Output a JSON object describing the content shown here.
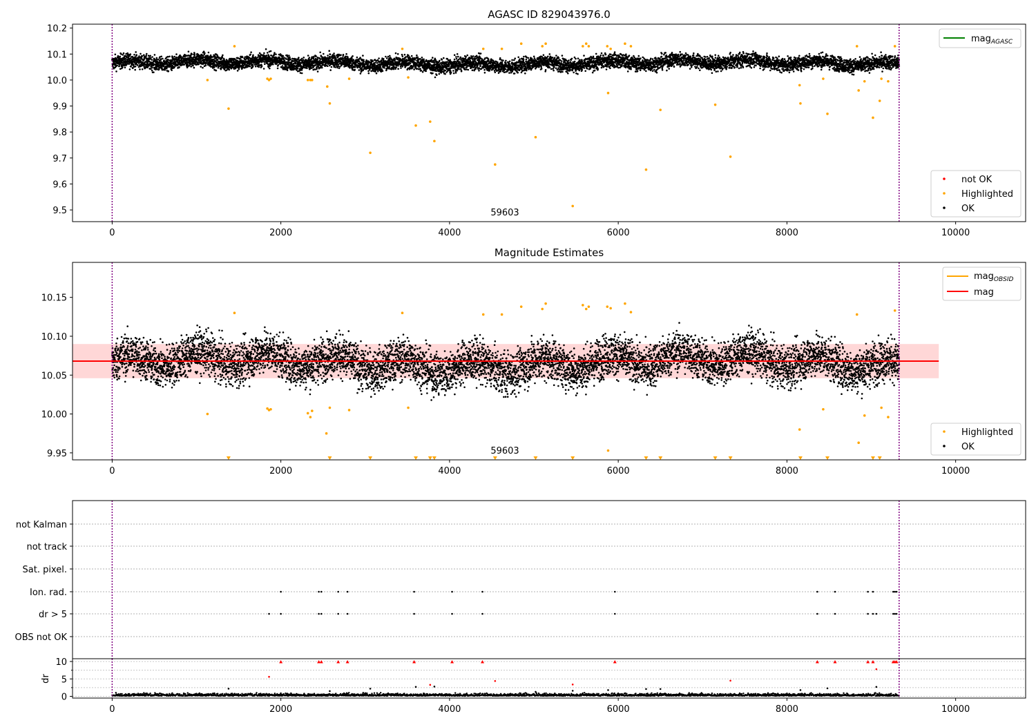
{
  "figure_title": "AGASC ID 829043976.0",
  "colors": {
    "ok": "#000000",
    "highlighted": "#ffa500",
    "not_ok": "#ff0000",
    "agasc_line": "#008000",
    "mag_line": "#ff0000",
    "mag_obsid": "#ffa500",
    "band": "#ffb6b6",
    "obsid_marker": "#800080"
  },
  "chart_data": [
    {
      "id": "top",
      "type": "scatter",
      "title": "AGASC ID 829043976.0",
      "xlim": [
        -470,
        10830
      ],
      "ylim": [
        9.455,
        10.215
      ],
      "xticks": [
        0,
        2000,
        4000,
        6000,
        8000,
        10000
      ],
      "yticks": [
        9.5,
        9.6,
        9.7,
        9.8,
        9.9,
        10.0,
        10.1,
        10.2
      ],
      "ytick_labels": [
        "9.5",
        "9.6",
        "9.7",
        "9.8",
        "9.9",
        "10.0",
        "10.1",
        "10.2"
      ],
      "obsid_label": "59603",
      "obsid_bounds": [
        0,
        9330
      ],
      "legend_upper": [
        {
          "label": "mag",
          "sub": "AGASC",
          "kind": "line",
          "color": "#008000"
        }
      ],
      "legend_lower": [
        {
          "label": "not OK",
          "kind": "dot",
          "color": "#ff0000"
        },
        {
          "label": "Highlighted",
          "kind": "dot",
          "color": "#ffa500"
        },
        {
          "label": "OK",
          "kind": "dot",
          "color": "#000000"
        }
      ],
      "ok_band": {
        "base": 10.065,
        "amp": 0.018,
        "noise": 0.03,
        "trend": 0.006
      },
      "highlighted": [
        [
          1130,
          10.0
        ],
        [
          1380,
          9.89
        ],
        [
          1450,
          10.13
        ],
        [
          1840,
          10.005
        ],
        [
          1860,
          10.0
        ],
        [
          1880,
          10.005
        ],
        [
          2320,
          10.0
        ],
        [
          2350,
          10.0
        ],
        [
          2370,
          10.0
        ],
        [
          2550,
          9.975
        ],
        [
          2580,
          9.91
        ],
        [
          2810,
          10.005
        ],
        [
          3060,
          9.72
        ],
        [
          3440,
          10.12
        ],
        [
          3510,
          10.01
        ],
        [
          3600,
          9.825
        ],
        [
          3770,
          9.84
        ],
        [
          3820,
          9.765
        ],
        [
          4400,
          10.12
        ],
        [
          4540,
          9.675
        ],
        [
          4620,
          10.12
        ],
        [
          4850,
          10.14
        ],
        [
          5020,
          9.78
        ],
        [
          5100,
          10.13
        ],
        [
          5140,
          10.14
        ],
        [
          5460,
          9.515
        ],
        [
          5580,
          10.13
        ],
        [
          5620,
          10.14
        ],
        [
          5650,
          10.13
        ],
        [
          5870,
          10.13
        ],
        [
          5880,
          9.95
        ],
        [
          5910,
          10.12
        ],
        [
          6080,
          10.14
        ],
        [
          6150,
          10.13
        ],
        [
          6330,
          9.655
        ],
        [
          6500,
          9.885
        ],
        [
          7150,
          9.905
        ],
        [
          7330,
          9.705
        ],
        [
          8150,
          9.98
        ],
        [
          8160,
          9.91
        ],
        [
          8430,
          10.005
        ],
        [
          8480,
          9.87
        ],
        [
          8830,
          10.13
        ],
        [
          8850,
          9.96
        ],
        [
          8920,
          9.995
        ],
        [
          9020,
          9.855
        ],
        [
          9100,
          9.92
        ],
        [
          9120,
          10.005
        ],
        [
          9200,
          9.995
        ],
        [
          9280,
          10.13
        ]
      ]
    },
    {
      "id": "middle",
      "type": "scatter",
      "title": "Magnitude Estimates",
      "xlim": [
        -470,
        10830
      ],
      "ylim": [
        9.941,
        10.195
      ],
      "xticks": [
        0,
        2000,
        4000,
        6000,
        8000,
        10000
      ],
      "yticks": [
        9.95,
        10.0,
        10.05,
        10.1,
        10.15
      ],
      "ytick_labels": [
        "9.95",
        "10.00",
        "10.05",
        "10.10",
        "10.15"
      ],
      "obsid_label": "59603",
      "obsid_bounds": [
        0,
        9330
      ],
      "mag_line": 10.068,
      "mag_band": [
        10.046,
        10.09
      ],
      "mag_band_x": [
        -470,
        9800
      ],
      "legend_upper": [
        {
          "label": "mag",
          "sub": "OBSID",
          "kind": "line",
          "color": "#ffa500"
        },
        {
          "label": "mag",
          "kind": "line",
          "color": "#ff0000"
        }
      ],
      "legend_lower": [
        {
          "label": "Highlighted",
          "kind": "dot",
          "color": "#ffa500"
        },
        {
          "label": "OK",
          "kind": "dot",
          "color": "#000000"
        }
      ],
      "ok_band": {
        "base": 10.066,
        "amp": 0.018,
        "noise": 0.03,
        "trend": 0.006
      },
      "highlighted": [
        [
          1130,
          10.0
        ],
        [
          1450,
          10.13
        ],
        [
          1840,
          10.007
        ],
        [
          1860,
          10.005
        ],
        [
          1880,
          10.006
        ],
        [
          2320,
          10.001
        ],
        [
          2350,
          9.996
        ],
        [
          2370,
          10.004
        ],
        [
          2540,
          9.975
        ],
        [
          2580,
          10.008
        ],
        [
          2810,
          10.005
        ],
        [
          3440,
          10.13
        ],
        [
          3510,
          10.008
        ],
        [
          4400,
          10.128
        ],
        [
          4620,
          10.128
        ],
        [
          4850,
          10.138
        ],
        [
          5100,
          10.135
        ],
        [
          5140,
          10.142
        ],
        [
          5580,
          10.14
        ],
        [
          5620,
          10.135
        ],
        [
          5650,
          10.138
        ],
        [
          5870,
          10.138
        ],
        [
          5880,
          9.953
        ],
        [
          5910,
          10.136
        ],
        [
          6080,
          10.142
        ],
        [
          6150,
          10.131
        ],
        [
          8150,
          9.98
        ],
        [
          8430,
          10.006
        ],
        [
          8830,
          10.128
        ],
        [
          8850,
          9.963
        ],
        [
          8920,
          9.998
        ],
        [
          9120,
          10.008
        ],
        [
          9200,
          9.996
        ],
        [
          9280,
          10.133
        ]
      ],
      "below_range_x": [
        1380,
        2580,
        3060,
        3600,
        3770,
        3820,
        4540,
        5020,
        5460,
        6330,
        6500,
        7150,
        7330,
        8160,
        8480,
        9020,
        9100
      ]
    },
    {
      "id": "flags",
      "type": "scatter",
      "xlim": [
        -470,
        10830
      ],
      "categories": [
        "not Kalman",
        "not track",
        "Sat. pixel.",
        "Ion. rad.",
        "dr > 5",
        "OBS not OK"
      ],
      "ion_rad_x": [
        2000,
        2450,
        2480,
        2680,
        2790,
        3580,
        4030,
        4390,
        5960,
        8360,
        8570,
        8960,
        9020,
        9260,
        9280,
        9300
      ],
      "dr5_x": [
        1860,
        2000,
        2450,
        2480,
        2680,
        2790,
        3580,
        4030,
        4390,
        5960,
        8360,
        8570,
        8960,
        9020,
        9060,
        9260,
        9280,
        9300
      ]
    },
    {
      "id": "dr",
      "type": "scatter",
      "xlim": [
        -470,
        10830
      ],
      "ylim": [
        -0.5,
        10.8
      ],
      "ylabel": "dr",
      "yticks": [
        0,
        5,
        10
      ],
      "xticks": [
        0,
        2000,
        4000,
        6000,
        8000,
        10000
      ],
      "clipped_x": [
        2000,
        2450,
        2480,
        2680,
        2790,
        3580,
        4030,
        4390,
        5960,
        8360,
        8570,
        8960,
        9020,
        9260,
        9280,
        9300
      ],
      "red_points": [
        [
          1860,
          5.6
        ],
        [
          3770,
          3.3
        ],
        [
          4540,
          4.4
        ],
        [
          5460,
          3.4
        ],
        [
          7330,
          4.5
        ],
        [
          9060,
          7.8
        ]
      ],
      "black_points": [
        [
          1380,
          2.2
        ],
        [
          3060,
          2.2
        ],
        [
          3600,
          2.7
        ],
        [
          3820,
          2.8
        ],
        [
          5460,
          1.6
        ],
        [
          5880,
          1.8
        ],
        [
          6330,
          2.1
        ],
        [
          6500,
          2.1
        ],
        [
          8160,
          1.8
        ],
        [
          8480,
          2.3
        ],
        [
          9060,
          2.7
        ],
        [
          5020,
          1.3
        ],
        [
          2580,
          1.5
        ]
      ]
    }
  ]
}
